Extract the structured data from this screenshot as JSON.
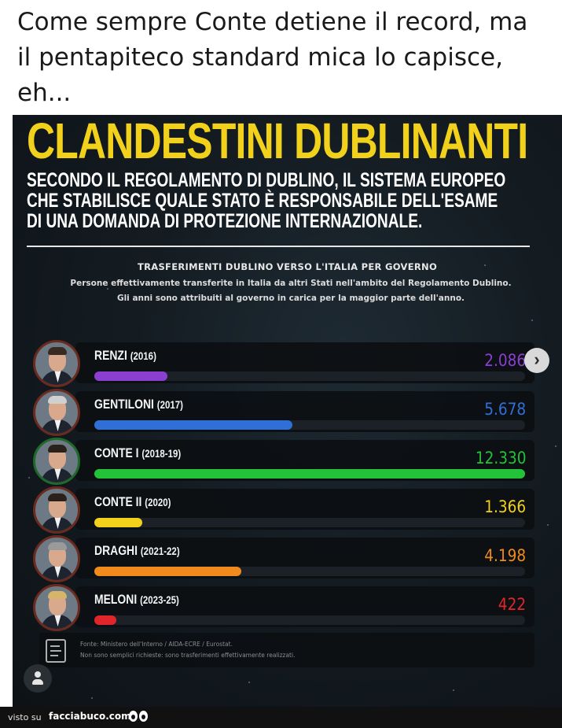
{
  "caption": "Come sempre Conte detiene il record, ma il pentapiteco standard mica lo capisce, eh...",
  "poster": {
    "headline": "CLANDESTINI DUBLINANTI",
    "subhead": "SECONDO IL REGOLAMENTO DI DUBLINO, IL SISTEMA EUROPEO CHE STABILISCE QUALE STATO È RESPONSABILE DELL'ESAME DI UNA DOMANDA DI PROTEZIONE INTERNAZIONALE.",
    "footer_line1": "Fonte: Ministero dell'Interno / AIDA-ECRE / Eurostat.",
    "footer_line2": "Non sono semplici richieste: sono trasferimenti effettivamente realizzati."
  },
  "chart_data": {
    "type": "bar",
    "title": "TRASFERIMENTI DUBLINO VERSO L'ITALIA PER GOVERNO",
    "description_1": "Persone effettivamente transferite in Italia da altri Stati nell'ambito del Regolamento Dublino.",
    "description_2": "Gli anni sono attribuiti al governo in carica per la maggior parte dell'anno.",
    "categories": [
      "RENZI (2016)",
      "GENTILONI (2017)",
      "CONTE I (2018-19)",
      "CONTE II (2020)",
      "DRAGHI (2021-22)",
      "MELONI (2023-25)"
    ],
    "rows": [
      {
        "name": "RENZI",
        "years": "(2016)",
        "value": 2086,
        "label": "2.086",
        "color": "#8b3fd1"
      },
      {
        "name": "GENTILONI",
        "years": "(2017)",
        "value": 5678,
        "label": "5.678",
        "color": "#2f6fd6"
      },
      {
        "name": "CONTE I",
        "years": "(2018-19)",
        "value": 12330,
        "label": "12.330",
        "color": "#23c238"
      },
      {
        "name": "CONTE II",
        "years": "(2020)",
        "value": 1366,
        "label": "1.366",
        "color": "#f2d11c"
      },
      {
        "name": "DRAGHI",
        "years": "(2021-22)",
        "value": 4198,
        "label": "4.198",
        "color": "#f08a1c"
      },
      {
        "name": "MELONI",
        "years": "(2023-25)",
        "value": 422,
        "label": "422",
        "color": "#e1262b"
      }
    ],
    "max": 12330
  },
  "bottombar": {
    "visto": "visto su",
    "brand": "facciabuco.com"
  }
}
